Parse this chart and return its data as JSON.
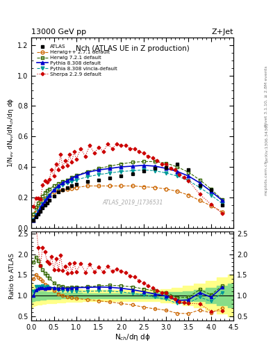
{
  "title_main": "Nch (ATLAS UE in Z production)",
  "title_top_left": "13000 GeV pp",
  "title_top_right": "Z+Jet",
  "ylabel_main": "1/N$_{ev}$ dN$_{ev}$/dN$_{ch}$/dη dϕ",
  "ylabel_ratio": "Ratio to ATLAS",
  "xlabel": "N$_{ch}$/dη dϕ",
  "right_label_top": "Rivet 3.1.10, ≥ 2.8M events",
  "right_label_bot": "[arXiv:1306.3436]",
  "right_label_bot2": "mcplots.cern.ch",
  "watermark": "ATLAS_2019_I1736531",
  "xlim": [
    0,
    4.5
  ],
  "ylim_main": [
    0,
    1.25
  ],
  "ylim_ratio": [
    0.4,
    2.55
  ],
  "atlas_x": [
    0.05,
    0.1,
    0.15,
    0.2,
    0.25,
    0.3,
    0.35,
    0.4,
    0.5,
    0.6,
    0.7,
    0.8,
    0.9,
    1.0,
    1.25,
    1.5,
    1.75,
    2.0,
    2.25,
    2.5,
    2.75,
    3.0,
    3.25,
    3.5,
    3.75,
    4.0,
    4.25
  ],
  "atlas_y": [
    0.05,
    0.07,
    0.09,
    0.11,
    0.13,
    0.15,
    0.165,
    0.18,
    0.21,
    0.235,
    0.25,
    0.265,
    0.275,
    0.285,
    0.305,
    0.315,
    0.325,
    0.34,
    0.355,
    0.375,
    0.39,
    0.395,
    0.42,
    0.38,
    0.275,
    0.25,
    0.15
  ],
  "herwig271_x": [
    0.05,
    0.1,
    0.15,
    0.2,
    0.25,
    0.3,
    0.35,
    0.4,
    0.5,
    0.6,
    0.7,
    0.8,
    0.9,
    1.0,
    1.25,
    1.5,
    1.75,
    2.0,
    2.25,
    2.5,
    2.75,
    3.0,
    3.25,
    3.5,
    3.75,
    4.0,
    4.25
  ],
  "herwig271_y": [
    0.07,
    0.105,
    0.13,
    0.155,
    0.175,
    0.19,
    0.205,
    0.215,
    0.235,
    0.245,
    0.25,
    0.255,
    0.26,
    0.265,
    0.275,
    0.275,
    0.275,
    0.275,
    0.275,
    0.27,
    0.265,
    0.255,
    0.24,
    0.215,
    0.18,
    0.145,
    0.105
  ],
  "herwig721_x": [
    0.05,
    0.1,
    0.15,
    0.2,
    0.25,
    0.3,
    0.35,
    0.4,
    0.5,
    0.6,
    0.7,
    0.8,
    0.9,
    1.0,
    1.25,
    1.5,
    1.75,
    2.0,
    2.25,
    2.5,
    2.75,
    3.0,
    3.25,
    3.5,
    3.75,
    4.0,
    4.25
  ],
  "herwig721_y": [
    0.09,
    0.135,
    0.165,
    0.19,
    0.21,
    0.23,
    0.245,
    0.255,
    0.275,
    0.29,
    0.305,
    0.315,
    0.33,
    0.345,
    0.37,
    0.39,
    0.405,
    0.42,
    0.43,
    0.435,
    0.435,
    0.425,
    0.4,
    0.365,
    0.315,
    0.255,
    0.185
  ],
  "pythia308_x": [
    0.05,
    0.1,
    0.15,
    0.2,
    0.25,
    0.3,
    0.35,
    0.4,
    0.5,
    0.6,
    0.7,
    0.8,
    0.9,
    1.0,
    1.25,
    1.5,
    1.75,
    2.0,
    2.25,
    2.5,
    2.75,
    3.0,
    3.25,
    3.5,
    3.75,
    4.0,
    4.25
  ],
  "pythia308_y": [
    0.05,
    0.08,
    0.105,
    0.13,
    0.155,
    0.175,
    0.195,
    0.215,
    0.25,
    0.275,
    0.295,
    0.31,
    0.325,
    0.34,
    0.365,
    0.38,
    0.39,
    0.4,
    0.405,
    0.41,
    0.405,
    0.39,
    0.37,
    0.34,
    0.295,
    0.24,
    0.18
  ],
  "pythia308v_x": [
    0.05,
    0.1,
    0.15,
    0.2,
    0.25,
    0.3,
    0.35,
    0.4,
    0.5,
    0.6,
    0.7,
    0.8,
    0.9,
    1.0,
    1.25,
    1.5,
    1.75,
    2.0,
    2.25,
    2.5,
    2.75,
    3.0,
    3.25,
    3.5,
    3.75,
    4.0,
    4.25
  ],
  "pythia308v_y": [
    0.055,
    0.085,
    0.11,
    0.135,
    0.16,
    0.18,
    0.2,
    0.215,
    0.245,
    0.265,
    0.28,
    0.295,
    0.305,
    0.315,
    0.335,
    0.35,
    0.36,
    0.37,
    0.375,
    0.38,
    0.375,
    0.36,
    0.34,
    0.31,
    0.265,
    0.215,
    0.16
  ],
  "sherpa_x": [
    0.05,
    0.1,
    0.15,
    0.2,
    0.25,
    0.3,
    0.35,
    0.4,
    0.45,
    0.5,
    0.55,
    0.6,
    0.65,
    0.7,
    0.75,
    0.8,
    0.85,
    0.9,
    0.95,
    1.0,
    1.1,
    1.2,
    1.3,
    1.4,
    1.5,
    1.6,
    1.7,
    1.8,
    1.9,
    2.0,
    2.1,
    2.2,
    2.3,
    2.4,
    2.5,
    2.6,
    2.7,
    2.8,
    2.9,
    3.0,
    3.1,
    3.2,
    3.3,
    3.4,
    3.5,
    3.75,
    4.0,
    4.25
  ],
  "sherpa_y": [
    0.14,
    0.195,
    0.195,
    0.19,
    0.28,
    0.31,
    0.3,
    0.32,
    0.38,
    0.34,
    0.42,
    0.38,
    0.48,
    0.4,
    0.44,
    0.41,
    0.48,
    0.43,
    0.5,
    0.45,
    0.52,
    0.47,
    0.54,
    0.49,
    0.53,
    0.5,
    0.55,
    0.52,
    0.55,
    0.54,
    0.54,
    0.52,
    0.52,
    0.5,
    0.49,
    0.47,
    0.46,
    0.44,
    0.42,
    0.42,
    0.39,
    0.38,
    0.35,
    0.33,
    0.31,
    0.22,
    0.155,
    0.095
  ],
  "band_x": [
    0.0,
    0.05,
    0.1,
    0.15,
    0.2,
    0.25,
    0.3,
    0.35,
    0.4,
    0.5,
    0.6,
    0.7,
    0.8,
    0.9,
    1.0,
    1.25,
    1.5,
    1.75,
    2.0,
    2.25,
    2.5,
    2.75,
    3.0,
    3.25,
    3.5,
    3.75,
    4.0,
    4.25,
    4.5
  ],
  "band_green_low": [
    0.85,
    0.87,
    0.88,
    0.89,
    0.9,
    0.9,
    0.9,
    0.91,
    0.91,
    0.92,
    0.92,
    0.93,
    0.93,
    0.93,
    0.93,
    0.94,
    0.94,
    0.94,
    0.94,
    0.94,
    0.94,
    0.93,
    0.92,
    0.91,
    0.89,
    0.86,
    0.82,
    0.77,
    0.72
  ],
  "band_green_high": [
    1.15,
    1.13,
    1.12,
    1.11,
    1.1,
    1.1,
    1.1,
    1.09,
    1.09,
    1.08,
    1.08,
    1.07,
    1.07,
    1.07,
    1.07,
    1.06,
    1.06,
    1.06,
    1.06,
    1.06,
    1.06,
    1.07,
    1.08,
    1.09,
    1.11,
    1.14,
    1.18,
    1.23,
    1.28
  ],
  "band_yellow_low": [
    0.72,
    0.75,
    0.77,
    0.78,
    0.79,
    0.8,
    0.8,
    0.81,
    0.81,
    0.82,
    0.83,
    0.84,
    0.85,
    0.85,
    0.85,
    0.86,
    0.87,
    0.87,
    0.87,
    0.87,
    0.87,
    0.86,
    0.84,
    0.81,
    0.77,
    0.72,
    0.65,
    0.57,
    0.5
  ],
  "band_yellow_high": [
    1.28,
    1.25,
    1.23,
    1.22,
    1.21,
    1.2,
    1.2,
    1.19,
    1.19,
    1.18,
    1.17,
    1.16,
    1.15,
    1.15,
    1.15,
    1.14,
    1.13,
    1.13,
    1.13,
    1.13,
    1.13,
    1.14,
    1.16,
    1.19,
    1.23,
    1.28,
    1.35,
    1.43,
    1.5
  ],
  "colors": {
    "atlas": "#000000",
    "herwig271": "#cc6600",
    "herwig721": "#336600",
    "pythia308": "#0000cc",
    "pythia308v": "#009999",
    "sherpa": "#cc0000"
  },
  "yticks_main": [
    0.0,
    0.2,
    0.4,
    0.6,
    0.8,
    1.0,
    1.2
  ],
  "yticks_ratio": [
    0.5,
    1.0,
    1.5,
    2.0,
    2.5
  ]
}
